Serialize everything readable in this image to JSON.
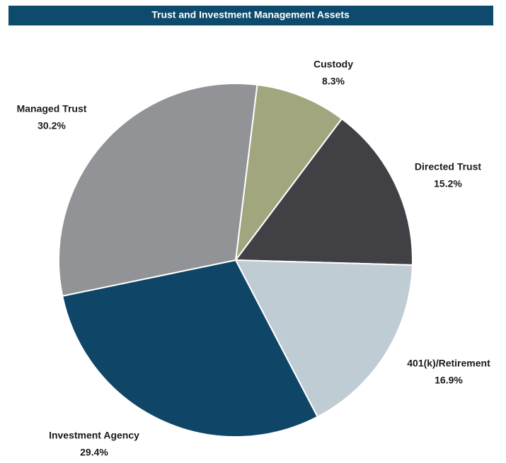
{
  "chart_data": {
    "type": "pie",
    "title": "Trust and Investment Management Assets",
    "categories": [
      "Custody",
      "Directed Trust",
      "401(k)/Retirement",
      "Investment Agency",
      "Managed Trust"
    ],
    "values": [
      8.3,
      15.2,
      16.9,
      29.4,
      30.2
    ],
    "value_labels": [
      "8.3%",
      "15.2%",
      "16.9%",
      "29.4%",
      "30.2%"
    ],
    "colors": [
      "#a2a67f",
      "#414045",
      "#c0ccd4",
      "#0f4566",
      "#929396"
    ]
  }
}
